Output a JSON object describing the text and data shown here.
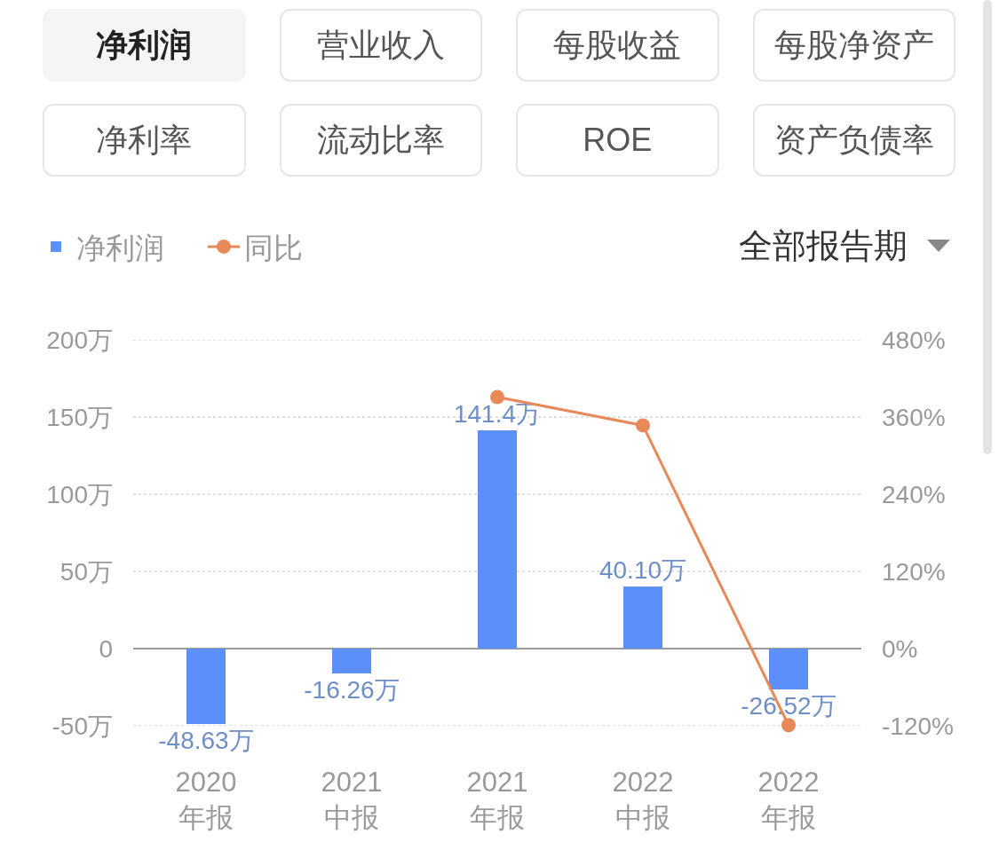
{
  "chart_data": {
    "type": "bar",
    "title": "净利润",
    "annotations": [
      "营业收入",
      "每股收益",
      "每股净资产",
      "净利率",
      "流动比率",
      "ROE",
      "资产负债率",
      "全部报告期"
    ],
    "categories": [
      "2020\n年报",
      "2021\n中报",
      "2021\n年报",
      "2022\n中报",
      "2022\n年报"
    ],
    "series": [
      {
        "name": "净利润",
        "color": "#5b8ff9",
        "values": [
          -48.63,
          -16.26,
          141.4,
          40.1,
          -26.52
        ],
        "value_labels": [
          "-48.63万",
          "-16.26万",
          "141.4万",
          "40.10万",
          "-26.52万"
        ]
      },
      {
        "name": "同比",
        "type": "line",
        "axis": "y2",
        "color": "#e8895a",
        "values": [
          null,
          null,
          391,
          347,
          -119
        ]
      }
    ],
    "ylim": [
      -50,
      200
    ],
    "yticks": [
      {
        "value": -50,
        "label": "-50万"
      },
      0,
      {
        "value": 50,
        "label": "50万"
      },
      {
        "value": 100,
        "label": "100万"
      },
      {
        "value": 150,
        "label": "150万"
      },
      {
        "value": 200,
        "label": "200万"
      }
    ],
    "y2lim": [
      -120,
      480
    ],
    "y2ticks": [
      {
        "value": -120,
        "label": "-120%"
      },
      {
        "value": 0,
        "label": "0%"
      },
      {
        "value": 120,
        "label": "120%"
      },
      {
        "value": 240,
        "label": "240%"
      },
      {
        "value": 360,
        "label": "360%"
      },
      {
        "value": 480,
        "label": "480%"
      }
    ],
    "grid": "y",
    "legend": "top left",
    "marker": "circle",
    "line_style": "solid"
  }
}
